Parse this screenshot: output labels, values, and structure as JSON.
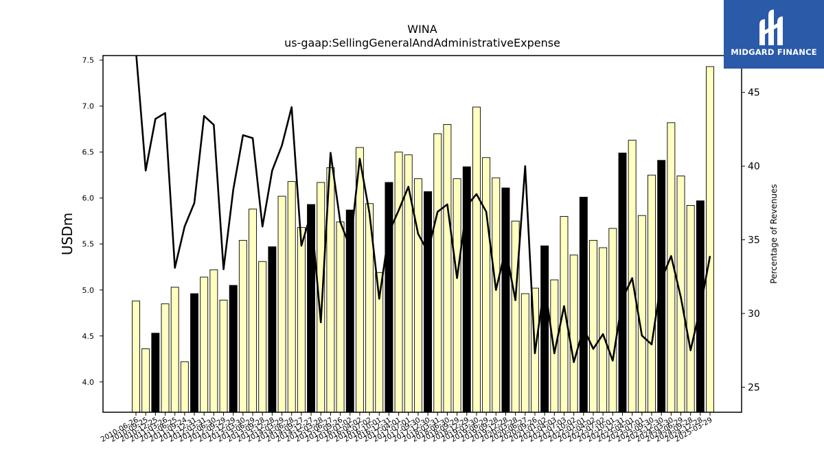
{
  "chart_data": {
    "type": "bar+line",
    "title": "WINA",
    "subtitle": "us-gaap:SellingGeneralAndAdministrativeExpense",
    "ylabel": "USDm",
    "y2label": "Percentage of Revenues",
    "ylim": [
      3.67,
      7.55
    ],
    "y2lim": [
      23.3,
      47.5
    ],
    "yticks": [
      "4.0",
      "4.5",
      "5.0",
      "5.5",
      "6.0",
      "6.5",
      "7.0",
      "7.5"
    ],
    "y2ticks": [
      "25",
      "30",
      "35",
      "40",
      "45"
    ],
    "colors": {
      "bar_light": "#ffffc0",
      "bar_dark": "#000000",
      "line": "#000000",
      "logo_bg": "#2a5aa8"
    },
    "categories": [
      "2010-06-26",
      "2010-09-25",
      "2010-12-25",
      "2011-03-26",
      "2011-06-25",
      "2011-09-24",
      "2011-12-31",
      "2012-03-31",
      "2012-06-30",
      "2012-09-29",
      "2012-12-29",
      "2013-03-30",
      "2013-06-29",
      "2013-09-28",
      "2013-12-28",
      "2014-03-29",
      "2014-06-28",
      "2014-09-27",
      "2014-12-27",
      "2015-03-28",
      "2015-06-27",
      "2015-09-26",
      "2016-01-02",
      "2016-04-02",
      "2016-07-02",
      "2016-10-01",
      "2016-12-31",
      "2017-04-01",
      "2017-07-01",
      "2017-09-30",
      "2017-12-30",
      "2018-03-31",
      "2018-06-30",
      "2018-09-29",
      "2018-12-29",
      "2019-03-30",
      "2019-06-29",
      "2019-09-28",
      "2019-12-28",
      "2020-03-28",
      "2020-06-27",
      "2020-09-26",
      "2021-01-02",
      "2021-04-03",
      "2021-07-03",
      "2021-10-02",
      "2022-01-01",
      "2022-04-02",
      "2022-07-02",
      "2022-10-01",
      "2022-12-31",
      "2023-04-01",
      "2023-07-01",
      "2023-09-30",
      "2023-12-30",
      "2024-03-30",
      "2024-06-29",
      "2024-09-28",
      "2024-12-28",
      "2025-03-29"
    ],
    "visible_tick_labels": [
      "2010-06-26",
      "2010-09-25",
      "2010-12-25",
      "2011-03-26",
      "2011-06-25",
      "2011-09-24",
      "2011-12-31",
      "2012-03-31",
      "2012-06-30",
      "2012-09-29",
      "2012-12-29",
      "2013-03-30",
      "2013-06-29",
      "2013-09-28",
      "2013-12-28",
      "2014-03-29",
      "2014-06-28",
      "2014-09-27",
      "2014-12-27",
      "2015-03-28",
      "2015-06-27",
      "2015-09-26",
      "2016-01-02",
      "2016-04-02",
      "2016-07-02",
      "2016-10-01",
      "2016-12-31",
      "2017-04-01",
      "2017-07-01",
      "2017-09-30",
      "2017-12-30",
      "2018-03-31",
      "2018-06-30",
      "2018-09-29",
      "2018-12-29",
      "2019-03-30",
      "2019-06-29",
      "2019-09-28",
      "2019-12-28",
      "2020-03-28",
      "2020-06-27",
      "2020-09-26",
      "2021-01-02",
      "2021-04-03",
      "2021-07-03",
      "2021-10-02",
      "2022-01-01",
      "2022-04-02",
      "2022-07-02",
      "2022-10-01",
      "2022-12-31",
      "2023-04-01",
      "2023-07-01",
      "2023-09-30",
      "2023-12-30",
      "2024-03-30",
      "2024-06-29",
      "2024-09-28",
      "2024-12-28",
      "2025-03-29"
    ],
    "bars": [
      4.88,
      4.36,
      4.53,
      4.85,
      5.03,
      4.22,
      4.96,
      5.14,
      5.22,
      4.89,
      5.05,
      5.54,
      5.88,
      5.31,
      5.47,
      6.02,
      6.18,
      5.68,
      5.93,
      6.17,
      6.33,
      5.74,
      5.87,
      6.55,
      5.94,
      5.19,
      6.17,
      6.5,
      6.47,
      6.21,
      6.07,
      6.7,
      6.8,
      6.21,
      6.34,
      6.99,
      6.44,
      6.22,
      6.11,
      5.75,
      4.96,
      5.02,
      5.48,
      5.11,
      5.8,
      5.38,
      6.01,
      5.54,
      5.46,
      5.67,
      6.49,
      6.63,
      5.81,
      6.25,
      6.41,
      6.82,
      6.24,
      5.92,
      5.97,
      7.43
    ],
    "dark_bars": [
      2,
      6,
      10,
      14,
      18,
      22,
      26,
      30,
      34,
      38,
      42,
      46,
      50,
      54,
      58
    ],
    "pct_revenue": [
      47.8,
      39.7,
      43.2,
      43.6,
      33.1,
      35.9,
      37.5,
      43.4,
      42.8,
      33.0,
      38.4,
      42.1,
      41.9,
      35.9,
      39.7,
      41.4,
      44.0,
      34.6,
      36.8,
      29.4,
      40.9,
      36.2,
      34.5,
      40.5,
      36.8,
      31.0,
      35.5,
      37.0,
      38.6,
      35.4,
      34.2,
      36.9,
      37.4,
      32.4,
      37.3,
      38.1,
      36.9,
      31.6,
      34.4,
      30.9,
      40.0,
      27.3,
      32.0,
      27.3,
      30.5,
      26.7,
      29.0,
      27.6,
      28.6,
      26.8,
      31.0,
      32.4,
      28.5,
      27.9,
      32.3,
      33.9,
      31.1,
      27.5,
      30.4,
      33.9
    ]
  },
  "logo": {
    "text": "MIDGARD FINANCE"
  }
}
